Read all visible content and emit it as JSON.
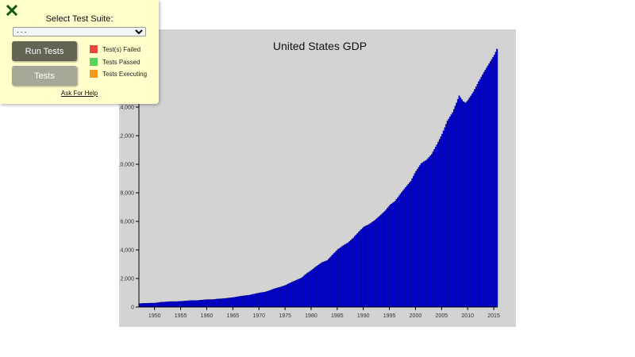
{
  "panel": {
    "close_icon": "x-icon",
    "suite_label": "Select Test Suite:",
    "suite_selected": "- - -",
    "run_button": "Run Tests",
    "tests_button": "Tests",
    "legend": [
      {
        "label": "Test(s) Failed",
        "color": "#e8473f"
      },
      {
        "label": "Tests Passed",
        "color": "#57d35a"
      },
      {
        "label": "Tests Executing",
        "color": "#f39a1c"
      }
    ],
    "help_link": "Ask For Help",
    "background": "#ffffcc"
  },
  "chart_data": {
    "type": "bar",
    "title": "United States GDP",
    "xlabel": "",
    "ylabel": "",
    "bar_color": "#0000cc",
    "background": "#d3d3d3",
    "ylim": [
      0,
      18064
    ],
    "yticks": [
      0,
      2000,
      4000,
      6000,
      8000,
      10000,
      12000,
      14000
    ],
    "ytick_labels": [
      "0",
      "2,000",
      "4,000",
      "6,000",
      "8,000",
      "10,000",
      "12,000",
      "14,000"
    ],
    "xticks": [
      1950,
      1955,
      1960,
      1965,
      1970,
      1975,
      1980,
      1985,
      1990,
      1995,
      2000,
      2005,
      2010,
      2015
    ],
    "xlim": [
      1947,
      2015.75
    ],
    "x": [
      1947,
      1948,
      1949,
      1950,
      1951,
      1952,
      1953,
      1954,
      1955,
      1956,
      1957,
      1958,
      1959,
      1960,
      1961,
      1962,
      1963,
      1964,
      1965,
      1966,
      1967,
      1968,
      1969,
      1970,
      1971,
      1972,
      1973,
      1974,
      1975,
      1976,
      1977,
      1978,
      1979,
      1980,
      1981,
      1982,
      1983,
      1984,
      1985,
      1986,
      1987,
      1988,
      1989,
      1990,
      1991,
      1992,
      1993,
      1994,
      1995,
      1996,
      1997,
      1998,
      1999,
      2000,
      2001,
      2002,
      2003,
      2004,
      2005,
      2006,
      2007,
      2007.75,
      2008.25,
      2009,
      2009.5,
      2010,
      2011,
      2012,
      2013,
      2014,
      2015,
      2015.5
    ],
    "values": [
      243,
      266,
      275,
      280,
      336,
      360,
      387,
      386,
      404,
      433,
      460,
      461,
      494,
      527,
      526,
      568,
      590,
      632,
      671,
      737,
      793,
      834,
      913,
      994,
      1049,
      1165,
      1304,
      1408,
      1526,
      1713,
      1873,
      2031,
      2336,
      2589,
      2875,
      3128,
      3265,
      3661,
      4031,
      4297,
      4511,
      4855,
      5252,
      5617,
      5793,
      6047,
      6364,
      6702,
      7144,
      7420,
      7916,
      8382,
      8820,
      9521,
      10058,
      10293,
      10700,
      11377,
      12113,
      13031,
      13620,
      14300,
      14800,
      14395,
      14300,
      14508,
      15074,
      15787,
      16440,
      17045,
      17650,
      18064
    ],
    "grid": false,
    "legend": null
  }
}
